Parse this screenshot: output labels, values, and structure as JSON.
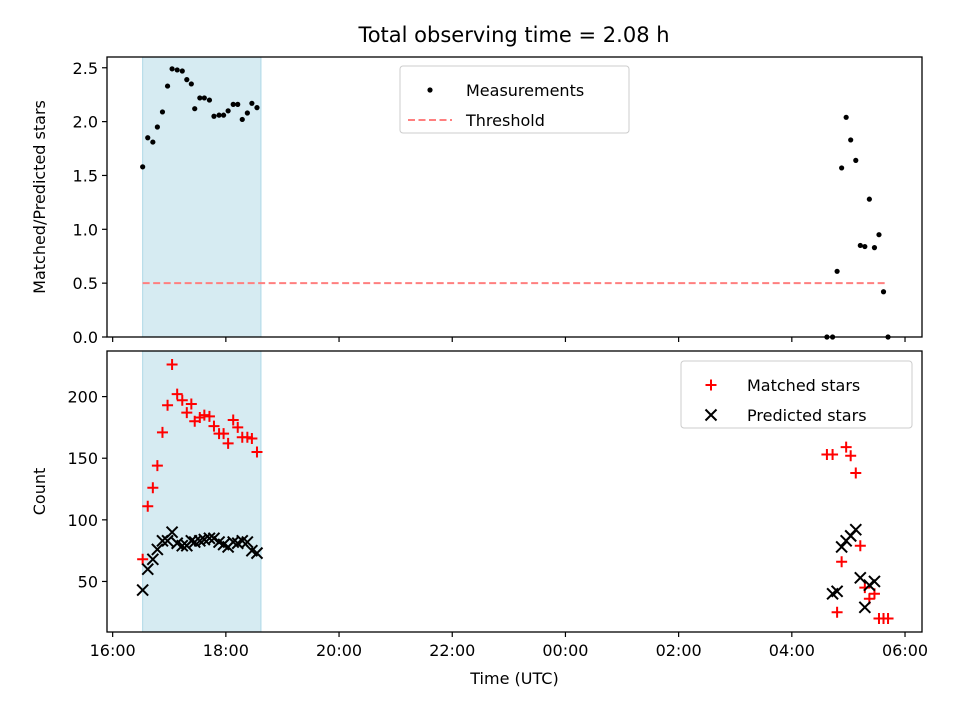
{
  "title": "Total observing time = 2.08 h",
  "colors": {
    "observing_span": "#add8e6",
    "measurement": "#000000",
    "threshold": "#ff7f7f",
    "matched": "#ff0000",
    "predicted": "#000000"
  },
  "chart_data": [
    {
      "type": "scatter",
      "panel": "top",
      "xlabel": "",
      "ylabel": "Matched/Predicted stars",
      "xlim": [
        -0.1,
        14.3
      ],
      "ylim": [
        0,
        2.6
      ],
      "x_ticks": [
        0,
        2,
        4,
        6,
        8,
        10,
        12,
        14
      ],
      "x_tick_labels": [
        "",
        "",
        "",
        "",
        "",
        "",
        "",
        ""
      ],
      "y_ticks": [
        0,
        0.5,
        1.0,
        1.5,
        2.0,
        2.5
      ],
      "y_tick_labels": [
        "0.0",
        "0.5",
        "1.0",
        "1.5",
        "2.0",
        "2.5"
      ],
      "grid": false,
      "legend_position": "top-center",
      "legend": [
        "Measurements",
        "Threshold"
      ],
      "observing_span": [
        0.53,
        2.62
      ],
      "series": [
        {
          "name": "Measurements",
          "type": "scatter",
          "x": [
            0.53,
            0.62,
            0.71,
            0.79,
            0.88,
            0.97,
            1.05,
            1.14,
            1.23,
            1.31,
            1.39,
            1.45,
            1.54,
            1.62,
            1.71,
            1.79,
            1.88,
            1.96,
            2.04,
            2.13,
            2.21,
            2.29,
            2.38,
            2.46,
            2.55,
            12.62,
            12.72,
            12.8,
            12.88,
            12.96,
            13.04,
            13.13,
            13.21,
            13.29,
            13.37,
            13.46,
            13.54,
            13.62,
            13.7
          ],
          "y": [
            1.58,
            1.85,
            1.81,
            1.95,
            2.09,
            2.33,
            2.49,
            2.48,
            2.47,
            2.39,
            2.35,
            2.12,
            2.22,
            2.22,
            2.2,
            2.05,
            2.06,
            2.06,
            2.1,
            2.16,
            2.16,
            2.02,
            2.08,
            2.17,
            2.13,
            0.0,
            0.0,
            0.61,
            1.57,
            2.04,
            1.83,
            1.64,
            0.85,
            0.84,
            1.28,
            0.83,
            0.95,
            0.42,
            0.0
          ]
        },
        {
          "name": "Threshold",
          "type": "line",
          "x": [
            0.53,
            13.7
          ],
          "y": [
            0.5,
            0.5
          ]
        }
      ]
    },
    {
      "type": "scatter",
      "panel": "bottom",
      "xlabel": "Time (UTC)",
      "ylabel": "Count",
      "xlim": [
        -0.1,
        14.3
      ],
      "ylim": [
        9,
        237
      ],
      "x_ticks": [
        0,
        2,
        4,
        6,
        8,
        10,
        12,
        14
      ],
      "x_tick_labels": [
        "16:00",
        "18:00",
        "20:00",
        "22:00",
        "00:00",
        "02:00",
        "04:00",
        "06:00"
      ],
      "y_ticks": [
        50,
        100,
        150,
        200
      ],
      "y_tick_labels": [
        "50",
        "100",
        "150",
        "200"
      ],
      "grid": false,
      "legend_position": "top-right",
      "legend": [
        "Matched stars",
        "Predicted stars"
      ],
      "observing_span": [
        0.53,
        2.62
      ],
      "series": [
        {
          "name": "Matched stars",
          "marker": "plus",
          "x": [
            0.53,
            0.62,
            0.71,
            0.79,
            0.88,
            0.97,
            1.05,
            1.14,
            1.23,
            1.31,
            1.39,
            1.45,
            1.54,
            1.62,
            1.71,
            1.79,
            1.88,
            1.96,
            2.04,
            2.13,
            2.21,
            2.29,
            2.38,
            2.46,
            2.55,
            12.62,
            12.72,
            12.8,
            12.88,
            12.96,
            13.04,
            13.13,
            13.21,
            13.29,
            13.37,
            13.46,
            13.54,
            13.62,
            13.7
          ],
          "y": [
            68,
            111,
            126,
            144,
            171,
            193,
            226,
            202,
            197,
            187,
            194,
            180,
            183,
            185,
            184,
            176,
            170,
            170,
            162,
            181,
            175,
            167,
            167,
            166,
            155,
            153,
            153,
            25,
            66,
            159,
            152,
            138,
            79,
            45,
            36,
            40,
            20,
            20,
            20
          ]
        },
        {
          "name": "Predicted stars",
          "marker": "x",
          "x": [
            0.53,
            0.62,
            0.71,
            0.79,
            0.88,
            0.97,
            1.05,
            1.14,
            1.23,
            1.31,
            1.39,
            1.45,
            1.54,
            1.62,
            1.71,
            1.79,
            1.88,
            1.96,
            2.04,
            2.13,
            2.21,
            2.29,
            2.38,
            2.46,
            2.55,
            12.72,
            12.8,
            12.88,
            12.96,
            13.04,
            13.13,
            13.21,
            13.29,
            13.37,
            13.46
          ],
          "y": [
            43,
            60,
            68,
            76,
            83,
            83,
            90,
            81,
            79,
            79,
            83,
            82,
            83,
            84,
            85,
            85,
            82,
            80,
            78,
            82,
            81,
            83,
            82,
            75,
            73,
            40,
            42,
            78,
            83,
            87,
            92,
            53,
            29,
            47,
            50
          ]
        }
      ]
    }
  ]
}
